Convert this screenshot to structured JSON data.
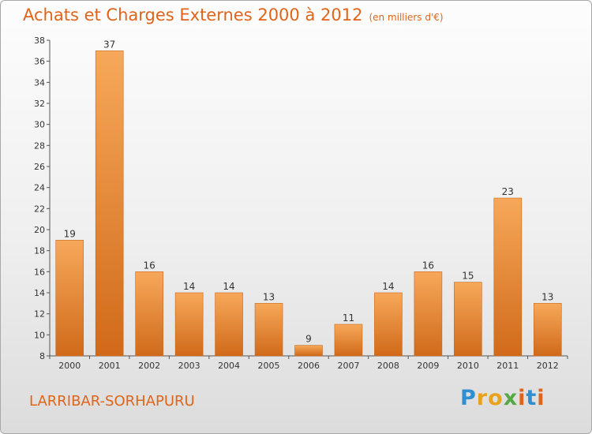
{
  "header": {
    "title": "Achats et Charges Externes 2000 à 2012",
    "subtitle": "(en milliers d'€)"
  },
  "footer": {
    "commune": "LARRIBAR-SORHAPURU",
    "brand_letters": [
      "P",
      "r",
      "o",
      "x",
      "i",
      "t",
      "i"
    ],
    "brand_colors": [
      "#2f8fd1",
      "#e8a21c",
      "#e8a21c",
      "#56a845",
      "#e0651a",
      "#2f8fd1",
      "#e0651a"
    ]
  },
  "chart_data": {
    "type": "bar",
    "title": "Achats et Charges Externes 2000 à 2012",
    "subtitle": "(en milliers d'€)",
    "categories": [
      "2000",
      "2001",
      "2002",
      "2003",
      "2004",
      "2005",
      "2006",
      "2007",
      "2008",
      "2009",
      "2010",
      "2011",
      "2012"
    ],
    "values": [
      19,
      37,
      16,
      14,
      14,
      13,
      9,
      11,
      14,
      16,
      15,
      23,
      13
    ],
    "data_labels": [
      "19",
      "37",
      "16",
      "14",
      "14",
      "13",
      "9",
      "11",
      "14",
      "16",
      "15",
      "23",
      "13"
    ],
    "ylim": [
      8,
      38
    ],
    "yticks": [
      8,
      10,
      12,
      14,
      16,
      18,
      20,
      22,
      24,
      26,
      28,
      30,
      32,
      34,
      36,
      38
    ],
    "ytick_labels": [
      "8",
      "10",
      "12",
      "14",
      "16",
      "18",
      "20",
      "22",
      "24",
      "26",
      "28",
      "30",
      "32",
      "34",
      "36",
      "38"
    ],
    "grid": "none",
    "bar_color": "#f2923a"
  }
}
